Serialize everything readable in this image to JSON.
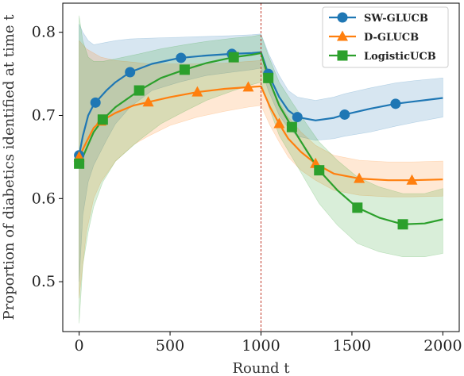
{
  "chart_data": {
    "type": "line",
    "xlabel": "Round t",
    "ylabel": "Proportion of diabetics identified at time t",
    "xlim": [
      -90,
      2090
    ],
    "ylim": [
      0.44,
      0.835
    ],
    "x_ticks": [
      0,
      500,
      1000,
      1500,
      2000
    ],
    "y_ticks": [
      0.5,
      0.6,
      0.7,
      0.8
    ],
    "x_tick_labels": [
      "0",
      "500",
      "1000",
      "1500",
      "2000"
    ],
    "y_tick_labels": [
      "0.5",
      "0.6",
      "0.7",
      "0.8"
    ],
    "grid": false,
    "legend": "top-right",
    "vline": {
      "x": 1000,
      "color": "#c0392b",
      "style": "dashed"
    },
    "series": [
      {
        "name": "SW-GLUCB",
        "color": "#1f77b4",
        "marker": "circle",
        "x": [
          0,
          20,
          50,
          80,
          150,
          200,
          280,
          400,
          550,
          700,
          840,
          950,
          1000,
          1040,
          1100,
          1150,
          1200,
          1300,
          1400,
          1460,
          1600,
          1740,
          1850,
          2000
        ],
        "y": [
          0.652,
          0.675,
          0.7,
          0.713,
          0.73,
          0.74,
          0.752,
          0.762,
          0.769,
          0.772,
          0.774,
          0.775,
          0.776,
          0.75,
          0.722,
          0.706,
          0.698,
          0.694,
          0.697,
          0.701,
          0.708,
          0.714,
          0.717,
          0.721
        ],
        "lower": [
          0.5,
          0.58,
          0.62,
          0.64,
          0.67,
          0.69,
          0.71,
          0.73,
          0.74,
          0.748,
          0.752,
          0.755,
          0.757,
          0.73,
          0.7,
          0.685,
          0.675,
          0.67,
          0.672,
          0.675,
          0.68,
          0.687,
          0.692,
          0.698
        ],
        "upper": [
          0.81,
          0.8,
          0.79,
          0.785,
          0.788,
          0.79,
          0.792,
          0.793,
          0.794,
          0.795,
          0.796,
          0.797,
          0.798,
          0.775,
          0.748,
          0.73,
          0.722,
          0.718,
          0.722,
          0.726,
          0.733,
          0.739,
          0.742,
          0.745
        ],
        "marker_x": [
          0,
          90,
          280,
          560,
          840,
          1040,
          1200,
          1460,
          1740
        ]
      },
      {
        "name": "D-GLUCB",
        "color": "#ff7f0e",
        "marker": "triangle",
        "x": [
          0,
          40,
          80,
          120,
          200,
          300,
          380,
          500,
          650,
          800,
          930,
          1000,
          1050,
          1100,
          1150,
          1220,
          1300,
          1400,
          1540,
          1700,
          1830,
          2000
        ],
        "y": [
          0.65,
          0.668,
          0.685,
          0.693,
          0.703,
          0.712,
          0.716,
          0.722,
          0.728,
          0.732,
          0.734,
          0.735,
          0.71,
          0.69,
          0.672,
          0.656,
          0.642,
          0.63,
          0.624,
          0.622,
          0.622,
          0.623
        ],
        "lower": [
          0.48,
          0.56,
          0.6,
          0.62,
          0.645,
          0.665,
          0.675,
          0.688,
          0.698,
          0.705,
          0.71,
          0.712,
          0.688,
          0.668,
          0.65,
          0.634,
          0.622,
          0.61,
          0.604,
          0.602,
          0.602,
          0.603
        ],
        "upper": [
          0.79,
          0.78,
          0.775,
          0.77,
          0.766,
          0.764,
          0.762,
          0.762,
          0.762,
          0.763,
          0.765,
          0.766,
          0.738,
          0.716,
          0.698,
          0.68,
          0.664,
          0.652,
          0.646,
          0.644,
          0.644,
          0.645
        ],
        "marker_x": [
          0,
          120,
          380,
          650,
          930,
          1100,
          1300,
          1540,
          1830
        ]
      },
      {
        "name": "LogisticUCB",
        "color": "#2ca02c",
        "marker": "square",
        "x": [
          0,
          20,
          50,
          80,
          130,
          200,
          330,
          450,
          580,
          700,
          850,
          950,
          1000,
          1040,
          1100,
          1170,
          1250,
          1320,
          1420,
          1530,
          1650,
          1780,
          1900,
          2000
        ],
        "y": [
          0.642,
          0.65,
          0.665,
          0.68,
          0.695,
          0.71,
          0.73,
          0.745,
          0.755,
          0.763,
          0.77,
          0.773,
          0.775,
          0.745,
          0.712,
          0.686,
          0.658,
          0.634,
          0.61,
          0.589,
          0.577,
          0.569,
          0.57,
          0.575
        ],
        "lower": [
          0.45,
          0.52,
          0.56,
          0.59,
          0.62,
          0.645,
          0.67,
          0.69,
          0.705,
          0.718,
          0.73,
          0.737,
          0.74,
          0.712,
          0.676,
          0.65,
          0.62,
          0.594,
          0.568,
          0.546,
          0.536,
          0.53,
          0.53,
          0.534
        ],
        "upper": [
          0.82,
          0.79,
          0.77,
          0.765,
          0.765,
          0.768,
          0.774,
          0.78,
          0.785,
          0.789,
          0.793,
          0.795,
          0.797,
          0.772,
          0.74,
          0.716,
          0.69,
          0.668,
          0.646,
          0.626,
          0.614,
          0.606,
          0.606,
          0.612
        ],
        "marker_x": [
          0,
          130,
          330,
          580,
          850,
          1040,
          1170,
          1320,
          1530,
          1780
        ]
      }
    ]
  }
}
